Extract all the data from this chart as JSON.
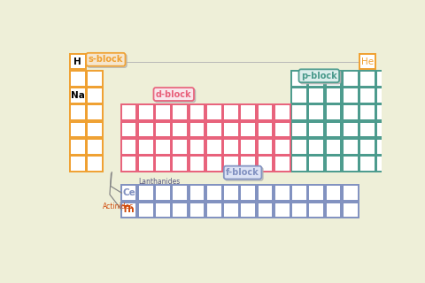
{
  "bg_color": "#eeefd8",
  "s_color": "#f0a030",
  "d_color": "#e8607a",
  "p_color": "#4a9a8c",
  "f_color": "#8090c0",
  "label_s": "s-block",
  "label_d": "d-block",
  "label_p": "p-block",
  "label_f": "f-block",
  "label_H": "H",
  "label_He": "He",
  "label_Na": "Na",
  "label_Ce": "Ce",
  "label_Th": "Th",
  "label_Lanthanides": "Lanthanides",
  "label_Actinides": "Actinides",
  "s_label_fill": "#f8e8d0",
  "d_label_fill": "#fce8ee",
  "p_label_fill": "#ddf0ee",
  "f_label_fill": "#dde4f8",
  "shadow_fill": "#d0d0c8",
  "shadow_edge": "#b0b0b0"
}
